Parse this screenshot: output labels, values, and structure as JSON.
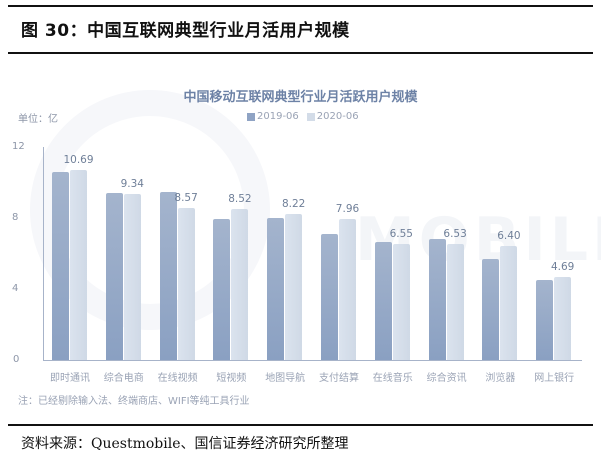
{
  "figure": {
    "title": "图 30：中国互联网典型行业月活用户规模",
    "source": "资料来源：Questmobile、国信证券经济研究所整理"
  },
  "chart": {
    "title": "中国移动互联网典型行业月活跃用户规模",
    "unit": "单位：亿",
    "legend": [
      {
        "label": "2019-06",
        "color": "#8fa3c4"
      },
      {
        "label": "2020-06",
        "color": "#d3dce8"
      }
    ],
    "yticks": [
      "12",
      "8",
      "4",
      "0"
    ],
    "note": "注：已经剔除输入法、终端商店、WIFI等纯工具行业",
    "watermark": "MOBILE"
  },
  "chart_data": {
    "type": "bar",
    "title": "中国移动互联网典型行业月活跃用户规模",
    "xlabel": "",
    "ylabel": "单位：亿",
    "ylim": [
      0,
      12
    ],
    "yticks": [
      0,
      4,
      8,
      12
    ],
    "grid": false,
    "legend_position": "top",
    "categories": [
      "即时通讯",
      "综合电商",
      "在线视频",
      "短视频",
      "地图导航",
      "支付结算",
      "在线音乐",
      "综合资讯",
      "浏览器",
      "网上银行"
    ],
    "series": [
      {
        "name": "2019-06",
        "values": [
          10.6,
          9.4,
          9.45,
          7.95,
          8.0,
          7.1,
          6.65,
          6.8,
          5.7,
          4.52
        ]
      },
      {
        "name": "2020-06",
        "values": [
          10.69,
          9.34,
          8.57,
          8.52,
          8.22,
          7.96,
          6.55,
          6.53,
          6.4,
          4.69
        ]
      }
    ],
    "data_labels": [
      "10.69",
      "9.34",
      "8.57",
      "8.52",
      "8.22",
      "7.96",
      "6.55",
      "6.53",
      "6.40",
      "4.69"
    ],
    "annotations": [
      "注：已经剔除输入法、终端商店、WIFI等纯工具行业"
    ]
  }
}
